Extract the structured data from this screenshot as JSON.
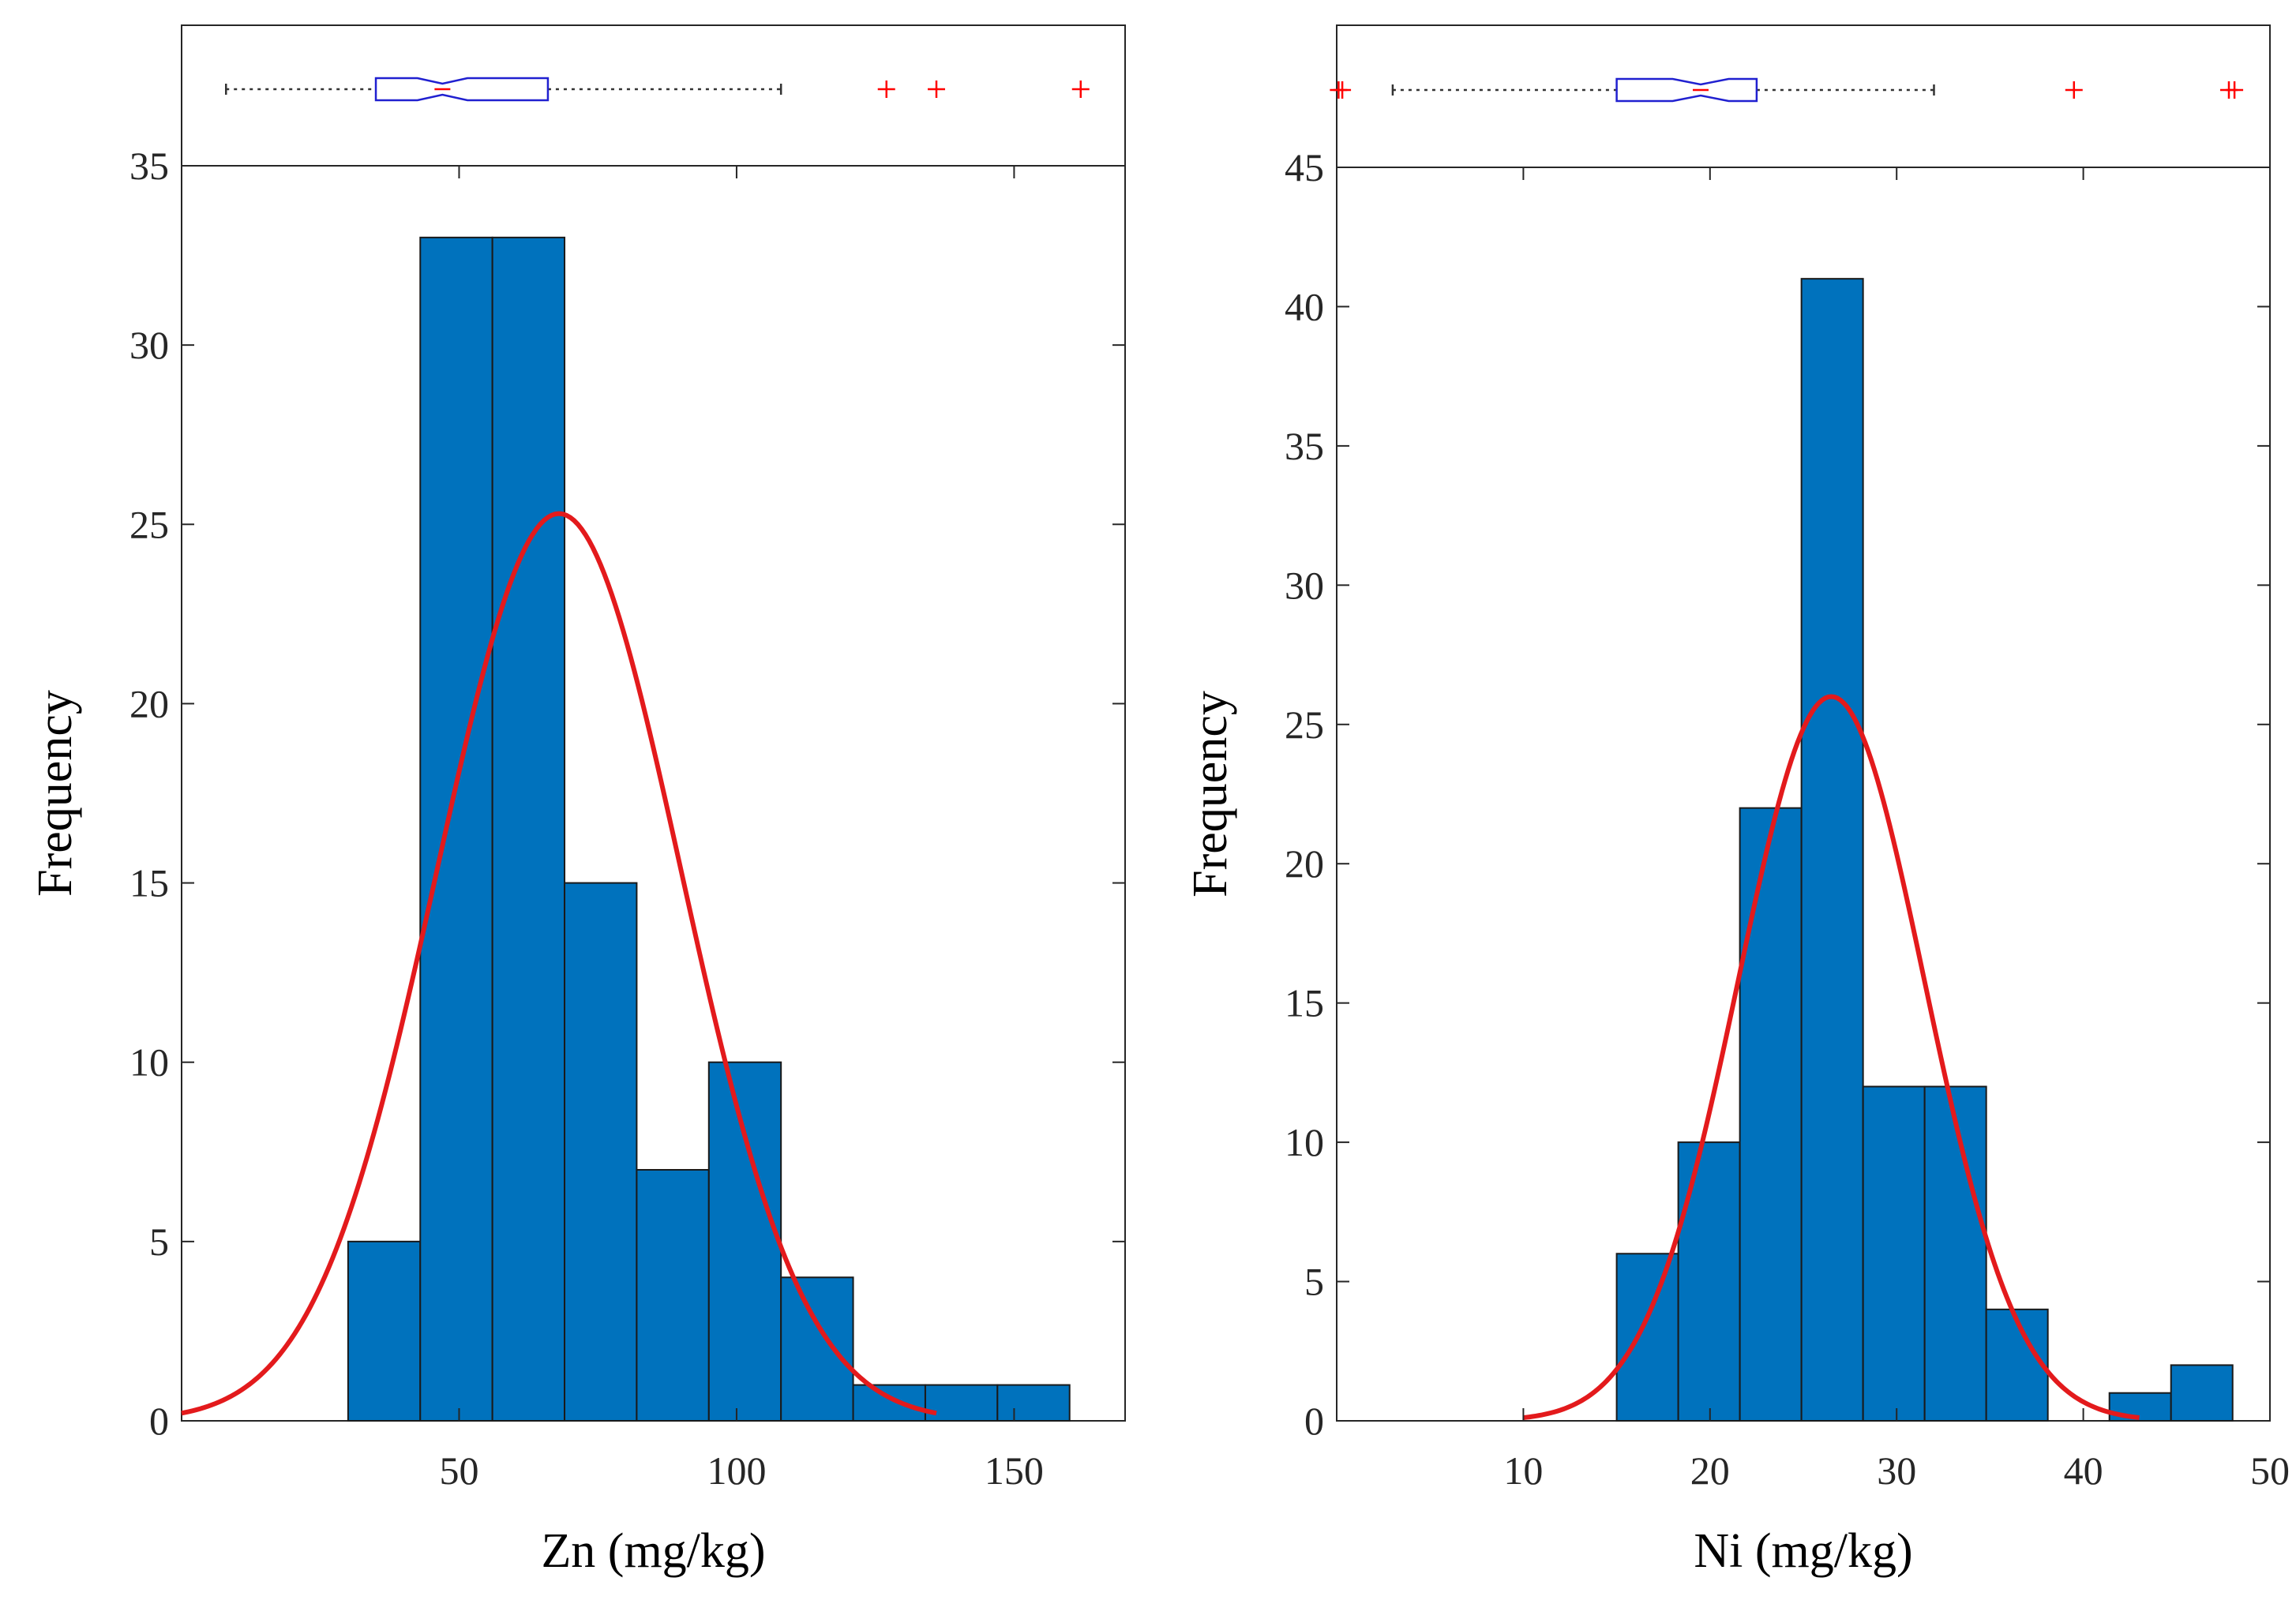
{
  "chart_data": [
    {
      "type": "bar",
      "xlabel": "Zn (mg/kg)",
      "ylabel": "Frequency",
      "xlim": [
        0,
        170
      ],
      "ylim": [
        0,
        35
      ],
      "xticks": [
        50,
        100,
        150
      ],
      "yticks": [
        0,
        5,
        10,
        15,
        20,
        25,
        30,
        35
      ],
      "bins": [
        {
          "x0": 30,
          "x1": 43,
          "count": 5
        },
        {
          "x0": 43,
          "x1": 56,
          "count": 33
        },
        {
          "x0": 56,
          "x1": 69,
          "count": 33
        },
        {
          "x0": 69,
          "x1": 82,
          "count": 15
        },
        {
          "x0": 82,
          "x1": 95,
          "count": 7
        },
        {
          "x0": 95,
          "x1": 108,
          "count": 10
        },
        {
          "x0": 108,
          "x1": 121,
          "count": 4
        },
        {
          "x0": 121,
          "x1": 134,
          "count": 1
        },
        {
          "x0": 134,
          "x1": 147,
          "count": 1
        },
        {
          "x0": 147,
          "x1": 160,
          "count": 1
        }
      ],
      "fit_curve": {
        "type": "normal",
        "peak": 25.3,
        "mean": 68,
        "std": 22,
        "x_range": [
          0,
          136
        ]
      },
      "boxplot": {
        "whisker_low": 8,
        "q1": 35,
        "median": 47,
        "q3": 66,
        "whisker_high": 108,
        "notch": 4.5,
        "outliers": [
          127,
          136,
          162
        ]
      },
      "colors": {
        "bar": "#0072BD",
        "fit": "#E31A1C",
        "box": "#2020D0",
        "outlier": "#FF0000"
      },
      "grid": false
    },
    {
      "type": "bar",
      "xlabel": "Ni (mg/kg)",
      "ylabel": "Frequency",
      "xlim": [
        0,
        50
      ],
      "ylim": [
        0,
        45
      ],
      "xticks": [
        10,
        20,
        30,
        40,
        50
      ],
      "yticks": [
        0,
        5,
        10,
        15,
        20,
        25,
        30,
        35,
        40,
        45
      ],
      "bins": [
        {
          "x0": 15,
          "x1": 18.3,
          "count": 6
        },
        {
          "x0": 18.3,
          "x1": 21.6,
          "count": 10
        },
        {
          "x0": 21.6,
          "x1": 24.9,
          "count": 22
        },
        {
          "x0": 24.9,
          "x1": 28.2,
          "count": 41
        },
        {
          "x0": 28.2,
          "x1": 31.5,
          "count": 12
        },
        {
          "x0": 31.5,
          "x1": 34.8,
          "count": 12
        },
        {
          "x0": 34.8,
          "x1": 38.1,
          "count": 4
        },
        {
          "x0": 38.1,
          "x1": 41.4,
          "count": 0
        },
        {
          "x0": 41.4,
          "x1": 44.7,
          "count": 1
        },
        {
          "x0": 44.7,
          "x1": 48,
          "count": 2
        }
      ],
      "fit_curve": {
        "type": "normal",
        "peak": 26,
        "mean": 26.5,
        "std": 5,
        "x_range": [
          10,
          43
        ]
      },
      "boxplot": {
        "whisker_low": 3,
        "q1": 15,
        "median": 19.5,
        "q3": 22.5,
        "whisker_high": 32,
        "notch": 1.5,
        "outliers": [
          0.1,
          0.3,
          39.5,
          47.8,
          48.1
        ]
      },
      "colors": {
        "bar": "#0072BD",
        "fit": "#E31A1C",
        "box": "#2020D0",
        "outlier": "#FF0000"
      },
      "grid": false
    }
  ]
}
